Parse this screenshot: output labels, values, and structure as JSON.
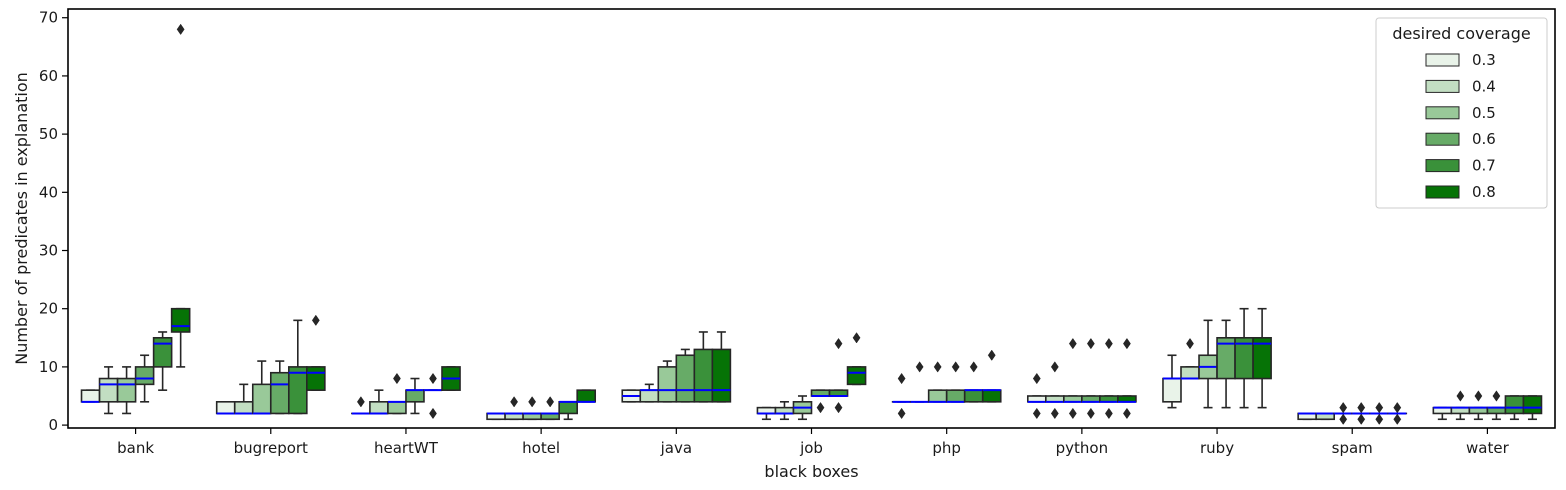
{
  "chart_data": {
    "type": "box",
    "xlabel": "black boxes",
    "ylabel": "Number of predicates in explanation",
    "ylim": [
      -0.5,
      71.5
    ],
    "yticks": [
      0,
      10,
      20,
      30,
      40,
      50,
      60,
      70
    ],
    "categories": [
      "bank",
      "bugreport",
      "heartWT",
      "hotel",
      "java",
      "job",
      "php",
      "python",
      "ruby",
      "spam",
      "water"
    ],
    "legend": {
      "title": "desired coverage",
      "placement": "top-right",
      "entries": [
        "0.3",
        "0.4",
        "0.5",
        "0.6",
        "0.7",
        "0.8"
      ]
    },
    "colors": {
      "series": [
        "#e9f3e9",
        "#c2dec2",
        "#99c999",
        "#67ab67",
        "#3a913a",
        "#067306"
      ],
      "edge": "#262626",
      "median": "#0000ff",
      "outlier": "#262626"
    },
    "series": [
      {
        "name": "0.3",
        "boxes": [
          {
            "whislo": 4,
            "q1": 4,
            "med": 4,
            "q3": 6,
            "whishi": 6,
            "fliers": []
          },
          {
            "whislo": 2,
            "q1": 2,
            "med": 2,
            "q3": 4,
            "whishi": 4,
            "fliers": []
          },
          {
            "whislo": 2,
            "q1": 2,
            "med": 2,
            "q3": 2,
            "whishi": 2,
            "fliers": [
              4
            ]
          },
          {
            "whislo": 1,
            "q1": 1,
            "med": 2,
            "q3": 2,
            "whishi": 2,
            "fliers": []
          },
          {
            "whislo": 4,
            "q1": 4,
            "med": 5,
            "q3": 6,
            "whishi": 6,
            "fliers": []
          },
          {
            "whislo": 1,
            "q1": 2,
            "med": 2,
            "q3": 3,
            "whishi": 3,
            "fliers": []
          },
          {
            "whislo": 4,
            "q1": 4,
            "med": 4,
            "q3": 4,
            "whishi": 4,
            "fliers": [
              2,
              8
            ]
          },
          {
            "whislo": 4,
            "q1": 4,
            "med": 4,
            "q3": 5,
            "whishi": 5,
            "fliers": [
              2,
              8
            ]
          },
          {
            "whislo": 3,
            "q1": 4,
            "med": 8,
            "q3": 8,
            "whishi": 12,
            "fliers": []
          },
          {
            "whislo": 1,
            "q1": 1,
            "med": 2,
            "q3": 2,
            "whishi": 2,
            "fliers": []
          },
          {
            "whislo": 1,
            "q1": 2,
            "med": 3,
            "q3": 3,
            "whishi": 3,
            "fliers": []
          }
        ]
      },
      {
        "name": "0.4",
        "boxes": [
          {
            "whislo": 2,
            "q1": 4,
            "med": 7,
            "q3": 8,
            "whishi": 10,
            "fliers": []
          },
          {
            "whislo": 2,
            "q1": 2,
            "med": 2,
            "q3": 4,
            "whishi": 7,
            "fliers": []
          },
          {
            "whislo": 2,
            "q1": 2,
            "med": 2,
            "q3": 4,
            "whishi": 6,
            "fliers": []
          },
          {
            "whislo": 1,
            "q1": 1,
            "med": 2,
            "q3": 2,
            "whishi": 2,
            "fliers": [
              4
            ]
          },
          {
            "whislo": 4,
            "q1": 4,
            "med": 6,
            "q3": 6,
            "whishi": 7,
            "fliers": []
          },
          {
            "whislo": 1,
            "q1": 2,
            "med": 2,
            "q3": 3,
            "whishi": 4,
            "fliers": []
          },
          {
            "whislo": 4,
            "q1": 4,
            "med": 4,
            "q3": 4,
            "whishi": 4,
            "fliers": [
              10
            ]
          },
          {
            "whislo": 4,
            "q1": 4,
            "med": 4,
            "q3": 5,
            "whishi": 5,
            "fliers": [
              2,
              10
            ]
          },
          {
            "whislo": 8,
            "q1": 8,
            "med": 8,
            "q3": 10,
            "whishi": 10,
            "fliers": [
              14
            ]
          },
          {
            "whislo": 1,
            "q1": 1,
            "med": 2,
            "q3": 2,
            "whishi": 2,
            "fliers": []
          },
          {
            "whislo": 1,
            "q1": 2,
            "med": 3,
            "q3": 3,
            "whishi": 3,
            "fliers": [
              5
            ]
          }
        ]
      },
      {
        "name": "0.5",
        "boxes": [
          {
            "whislo": 2,
            "q1": 4,
            "med": 7,
            "q3": 8,
            "whishi": 10,
            "fliers": []
          },
          {
            "whislo": 2,
            "q1": 2,
            "med": 2,
            "q3": 7,
            "whishi": 11,
            "fliers": []
          },
          {
            "whislo": 2,
            "q1": 2,
            "med": 4,
            "q3": 4,
            "whishi": 4,
            "fliers": [
              8
            ]
          },
          {
            "whislo": 1,
            "q1": 1,
            "med": 2,
            "q3": 2,
            "whishi": 2,
            "fliers": [
              4
            ]
          },
          {
            "whislo": 4,
            "q1": 4,
            "med": 6,
            "q3": 10,
            "whishi": 11,
            "fliers": []
          },
          {
            "whislo": 1,
            "q1": 2,
            "med": 3,
            "q3": 4,
            "whishi": 5,
            "fliers": []
          },
          {
            "whislo": 4,
            "q1": 4,
            "med": 4,
            "q3": 6,
            "whishi": 6,
            "fliers": [
              10
            ]
          },
          {
            "whislo": 4,
            "q1": 4,
            "med": 4,
            "q3": 5,
            "whishi": 5,
            "fliers": [
              2,
              14
            ]
          },
          {
            "whislo": 3,
            "q1": 8,
            "med": 10,
            "q3": 12,
            "whishi": 18,
            "fliers": []
          },
          {
            "whislo": 2,
            "q1": 2,
            "med": 2,
            "q3": 2,
            "whishi": 2,
            "fliers": [
              1,
              3
            ]
          },
          {
            "whislo": 1,
            "q1": 2,
            "med": 3,
            "q3": 3,
            "whishi": 3,
            "fliers": [
              5
            ]
          }
        ]
      },
      {
        "name": "0.6",
        "boxes": [
          {
            "whislo": 4,
            "q1": 7,
            "med": 8,
            "q3": 10,
            "whishi": 12,
            "fliers": []
          },
          {
            "whislo": 2,
            "q1": 2,
            "med": 7,
            "q3": 9,
            "whishi": 11,
            "fliers": []
          },
          {
            "whislo": 2,
            "q1": 4,
            "med": 6,
            "q3": 6,
            "whishi": 8,
            "fliers": []
          },
          {
            "whislo": 1,
            "q1": 1,
            "med": 2,
            "q3": 2,
            "whishi": 2,
            "fliers": [
              4
            ]
          },
          {
            "whislo": 4,
            "q1": 4,
            "med": 6,
            "q3": 12,
            "whishi": 13,
            "fliers": []
          },
          {
            "whislo": 5,
            "q1": 5,
            "med": 5,
            "q3": 6,
            "whishi": 6,
            "fliers": [
              3
            ]
          },
          {
            "whislo": 4,
            "q1": 4,
            "med": 4,
            "q3": 6,
            "whishi": 6,
            "fliers": [
              10
            ]
          },
          {
            "whislo": 4,
            "q1": 4,
            "med": 4,
            "q3": 5,
            "whishi": 5,
            "fliers": [
              2,
              14
            ]
          },
          {
            "whislo": 3,
            "q1": 8,
            "med": 14,
            "q3": 15,
            "whishi": 18,
            "fliers": []
          },
          {
            "whislo": 2,
            "q1": 2,
            "med": 2,
            "q3": 2,
            "whishi": 2,
            "fliers": [
              1,
              3
            ]
          },
          {
            "whislo": 1,
            "q1": 2,
            "med": 3,
            "q3": 3,
            "whishi": 3,
            "fliers": [
              5
            ]
          }
        ]
      },
      {
        "name": "0.7",
        "boxes": [
          {
            "whislo": 6,
            "q1": 10,
            "med": 14,
            "q3": 15,
            "whishi": 16,
            "fliers": []
          },
          {
            "whislo": 2,
            "q1": 2,
            "med": 9,
            "q3": 10,
            "whishi": 18,
            "fliers": []
          },
          {
            "whislo": 6,
            "q1": 6,
            "med": 6,
            "q3": 6,
            "whishi": 6,
            "fliers": [
              2,
              8
            ]
          },
          {
            "whislo": 1,
            "q1": 2,
            "med": 4,
            "q3": 4,
            "whishi": 4,
            "fliers": []
          },
          {
            "whislo": 4,
            "q1": 4,
            "med": 6,
            "q3": 13,
            "whishi": 16,
            "fliers": []
          },
          {
            "whislo": 5,
            "q1": 5,
            "med": 5,
            "q3": 6,
            "whishi": 6,
            "fliers": [
              3,
              14
            ]
          },
          {
            "whislo": 4,
            "q1": 4,
            "med": 6,
            "q3": 6,
            "whishi": 6,
            "fliers": [
              10
            ]
          },
          {
            "whislo": 4,
            "q1": 4,
            "med": 4,
            "q3": 5,
            "whishi": 5,
            "fliers": [
              2,
              14
            ]
          },
          {
            "whislo": 3,
            "q1": 8,
            "med": 14,
            "q3": 15,
            "whishi": 20,
            "fliers": []
          },
          {
            "whislo": 2,
            "q1": 2,
            "med": 2,
            "q3": 2,
            "whishi": 2,
            "fliers": [
              1,
              3
            ]
          },
          {
            "whislo": 1,
            "q1": 2,
            "med": 3,
            "q3": 5,
            "whishi": 5,
            "fliers": []
          }
        ]
      },
      {
        "name": "0.8",
        "boxes": [
          {
            "whislo": 10,
            "q1": 16,
            "med": 17,
            "q3": 20,
            "whishi": 20,
            "fliers": [
              68
            ]
          },
          {
            "whislo": 6,
            "q1": 6,
            "med": 9,
            "q3": 10,
            "whishi": 10,
            "fliers": [
              18
            ]
          },
          {
            "whislo": 6,
            "q1": 6,
            "med": 8,
            "q3": 10,
            "whishi": 10,
            "fliers": []
          },
          {
            "whislo": 4,
            "q1": 4,
            "med": 4,
            "q3": 6,
            "whishi": 6,
            "fliers": []
          },
          {
            "whislo": 4,
            "q1": 4,
            "med": 6,
            "q3": 13,
            "whishi": 16,
            "fliers": []
          },
          {
            "whislo": 7,
            "q1": 7,
            "med": 9,
            "q3": 10,
            "whishi": 10,
            "fliers": [
              15
            ]
          },
          {
            "whislo": 4,
            "q1": 4,
            "med": 6,
            "q3": 6,
            "whishi": 6,
            "fliers": [
              12
            ]
          },
          {
            "whislo": 4,
            "q1": 4,
            "med": 4,
            "q3": 5,
            "whishi": 5,
            "fliers": [
              2,
              14
            ]
          },
          {
            "whislo": 3,
            "q1": 8,
            "med": 14,
            "q3": 15,
            "whishi": 20,
            "fliers": []
          },
          {
            "whislo": 2,
            "q1": 2,
            "med": 2,
            "q3": 2,
            "whishi": 2,
            "fliers": [
              1,
              3
            ]
          },
          {
            "whislo": 1,
            "q1": 2,
            "med": 3,
            "q3": 5,
            "whishi": 5,
            "fliers": []
          }
        ]
      }
    ]
  }
}
